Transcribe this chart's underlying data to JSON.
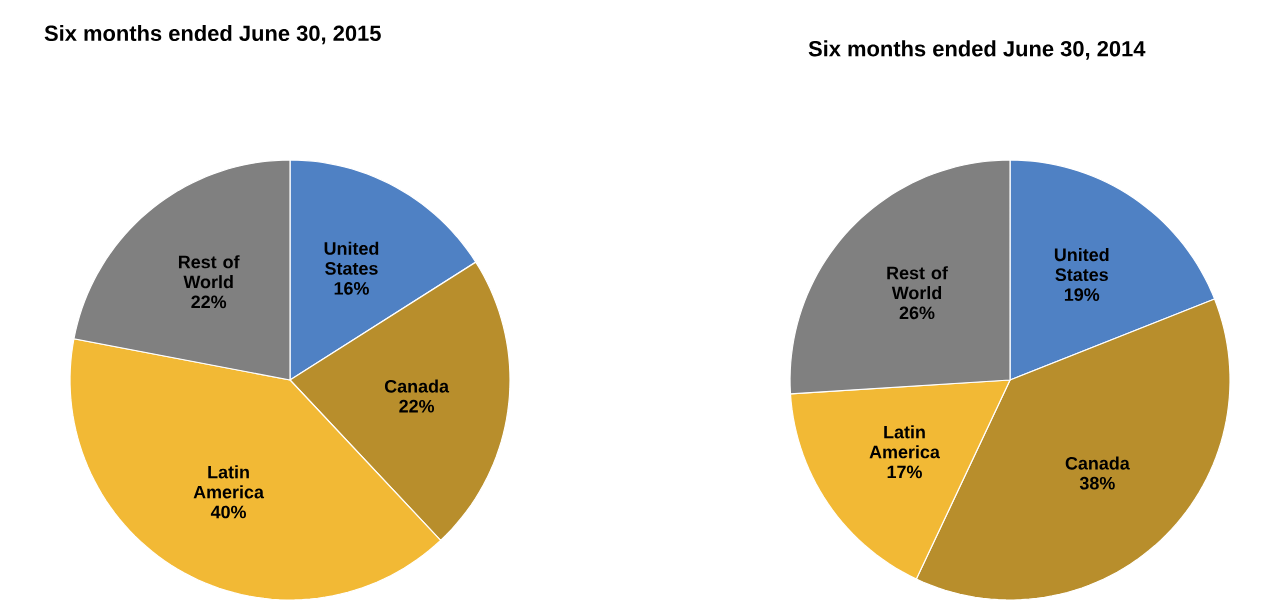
{
  "chart_data": [
    {
      "type": "pie",
      "title": "Six months ended June 30, 2015",
      "categories": [
        "United States",
        "Canada",
        "Latin America",
        "Rest of World"
      ],
      "values": [
        16,
        22,
        40,
        22
      ],
      "value_labels": [
        "16%",
        "22%",
        "40%",
        "22%"
      ],
      "colors": [
        "#4f81c4",
        "#b88e2c",
        "#f2b935",
        "#808080"
      ]
    },
    {
      "type": "pie",
      "title": "Six months ended June 30, 2014",
      "categories": [
        "United States",
        "Canada",
        "Latin America",
        "Rest of World"
      ],
      "values": [
        19,
        38,
        17,
        26
      ],
      "value_labels": [
        "19%",
        "38%",
        "17%",
        "26%"
      ],
      "colors": [
        "#4f81c4",
        "#b88e2c",
        "#f2b935",
        "#808080"
      ]
    }
  ]
}
